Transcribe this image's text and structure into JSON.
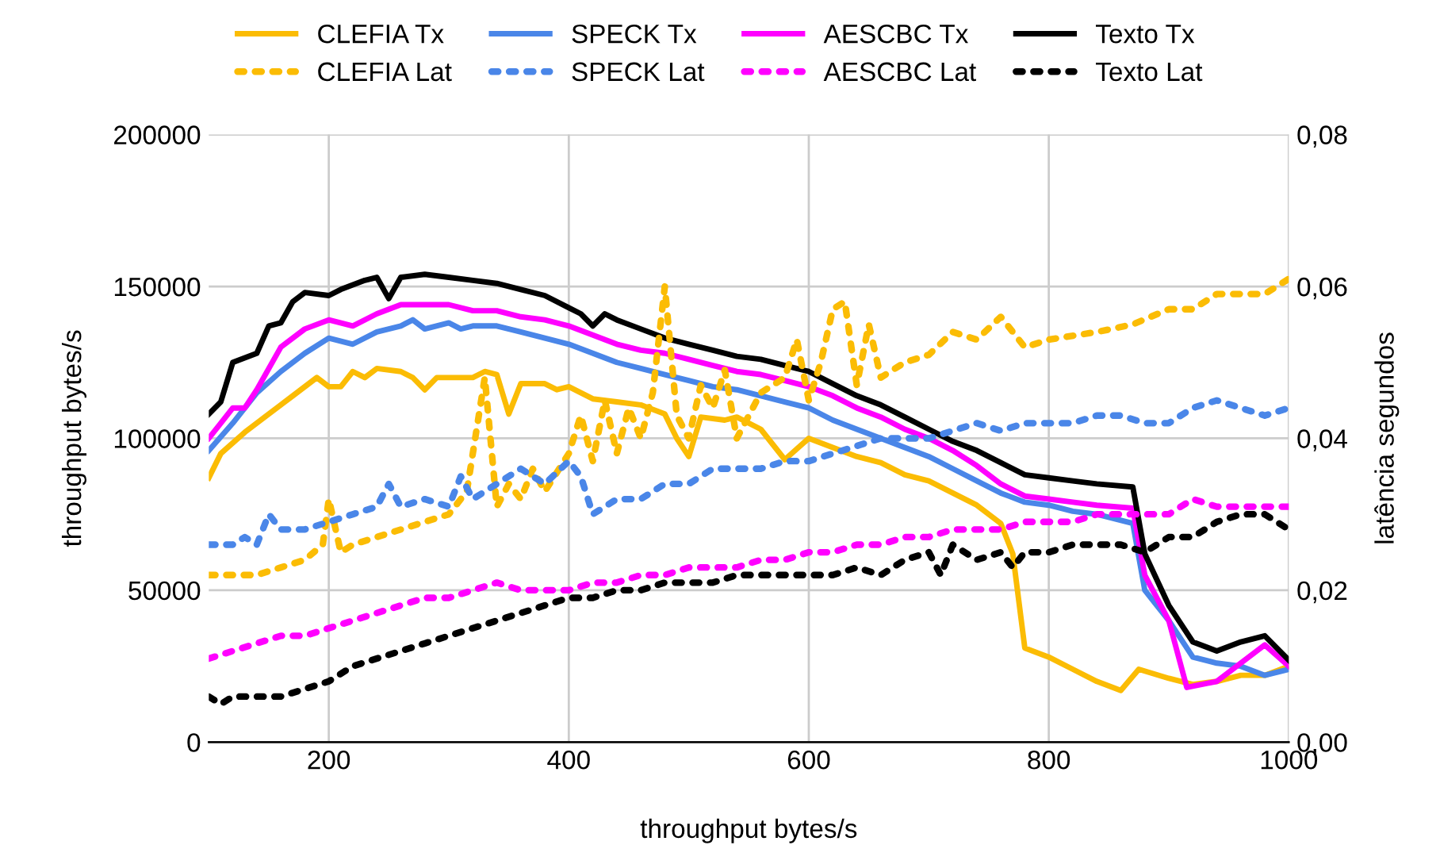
{
  "chart_data": {
    "type": "line",
    "xlabel": "throughput bytes/s",
    "ylabel": "throughput bytes/s",
    "y2label": "latência segundos",
    "xlim": [
      100,
      1000
    ],
    "xticks": [
      200,
      400,
      600,
      800,
      1000
    ],
    "ylim": [
      0,
      200000
    ],
    "yticks": [
      0,
      50000,
      100000,
      150000,
      200000
    ],
    "y2lim": [
      0,
      0.08
    ],
    "y2ticks": [
      {
        "value": 0,
        "label": "0,00"
      },
      {
        "value": 0.02,
        "label": "0,02"
      },
      {
        "value": 0.04,
        "label": "0,04"
      },
      {
        "value": 0.06,
        "label": "0,06"
      },
      {
        "value": 0.08,
        "label": "0,08"
      }
    ],
    "grid": true,
    "legend": "top",
    "marker": "none",
    "series": [
      {
        "name": "CLEFIA Tx",
        "color": "#fbbc04",
        "line_style": "solid",
        "x": [
          100,
          110,
          130,
          150,
          170,
          190,
          200,
          210,
          220,
          230,
          240,
          260,
          270,
          280,
          290,
          300,
          320,
          330,
          340,
          350,
          360,
          380,
          390,
          400,
          420,
          440,
          460,
          480,
          490,
          500,
          510,
          530,
          540,
          560,
          580,
          600,
          620,
          640,
          660,
          680,
          700,
          720,
          740,
          760,
          770,
          780,
          800,
          820,
          840,
          860,
          875,
          900,
          920,
          940,
          960,
          980,
          1000
        ],
        "values": [
          87000,
          95000,
          102000,
          108000,
          114000,
          120000,
          117000,
          117000,
          122000,
          120000,
          123000,
          122000,
          120000,
          116000,
          120000,
          120000,
          120000,
          122000,
          121000,
          108000,
          118000,
          118000,
          116000,
          117000,
          113000,
          112000,
          111000,
          108000,
          100000,
          94000,
          107000,
          106000,
          107000,
          103000,
          93000,
          100000,
          97000,
          94000,
          92000,
          88000,
          86000,
          82000,
          78000,
          72000,
          62000,
          31000,
          28000,
          24000,
          20000,
          17000,
          24000,
          21000,
          19000,
          20000,
          22000,
          22000,
          25000
        ]
      },
      {
        "name": "CLEFIA Lat",
        "color": "#fbbc04",
        "line_style": "dotted",
        "axis": "y2",
        "x": [
          100,
          120,
          140,
          160,
          180,
          195,
          200,
          210,
          220,
          240,
          260,
          280,
          300,
          315,
          330,
          340,
          350,
          360,
          370,
          380,
          400,
          410,
          420,
          430,
          440,
          450,
          460,
          470,
          480,
          490,
          500,
          510,
          520,
          530,
          540,
          560,
          580,
          590,
          600,
          610,
          620,
          630,
          640,
          650,
          660,
          680,
          700,
          720,
          740,
          760,
          780,
          800,
          840,
          870,
          900,
          920,
          940,
          980,
          1000
        ],
        "values": [
          0.022,
          0.022,
          0.022,
          0.023,
          0.024,
          0.026,
          0.032,
          0.025,
          0.026,
          0.027,
          0.028,
          0.029,
          0.03,
          0.033,
          0.048,
          0.031,
          0.034,
          0.032,
          0.036,
          0.033,
          0.038,
          0.043,
          0.037,
          0.045,
          0.038,
          0.044,
          0.04,
          0.046,
          0.06,
          0.043,
          0.04,
          0.047,
          0.044,
          0.049,
          0.04,
          0.046,
          0.048,
          0.053,
          0.045,
          0.05,
          0.057,
          0.058,
          0.047,
          0.055,
          0.048,
          0.05,
          0.051,
          0.054,
          0.053,
          0.056,
          0.052,
          0.053,
          0.054,
          0.055,
          0.057,
          0.057,
          0.059,
          0.059,
          0.061
        ]
      },
      {
        "name": "SPECK Tx",
        "color": "#4a86e8",
        "line_style": "solid",
        "x": [
          100,
          120,
          140,
          160,
          180,
          200,
          220,
          240,
          260,
          270,
          280,
          300,
          310,
          320,
          340,
          360,
          380,
          400,
          420,
          440,
          460,
          480,
          500,
          520,
          540,
          560,
          580,
          600,
          620,
          640,
          660,
          680,
          700,
          720,
          740,
          760,
          780,
          800,
          820,
          840,
          870,
          880,
          900,
          920,
          940,
          960,
          980,
          1000
        ],
        "values": [
          96000,
          105000,
          115000,
          122000,
          128000,
          133000,
          131000,
          135000,
          137000,
          139000,
          136000,
          138000,
          136000,
          137000,
          137000,
          135000,
          133000,
          131000,
          128000,
          125000,
          123000,
          121000,
          119000,
          117000,
          116000,
          114000,
          112000,
          110000,
          106000,
          103000,
          100000,
          97000,
          94000,
          90000,
          86000,
          82000,
          79000,
          78000,
          76000,
          75000,
          72000,
          50000,
          40000,
          28000,
          26000,
          25000,
          22000,
          24000
        ]
      },
      {
        "name": "SPECK Lat",
        "color": "#4a86e8",
        "line_style": "dotted",
        "axis": "y2",
        "x": [
          100,
          120,
          130,
          140,
          150,
          160,
          180,
          200,
          220,
          240,
          250,
          260,
          280,
          300,
          310,
          320,
          340,
          360,
          380,
          400,
          410,
          420,
          440,
          460,
          480,
          500,
          520,
          540,
          560,
          580,
          600,
          620,
          640,
          660,
          680,
          700,
          720,
          740,
          760,
          780,
          800,
          820,
          840,
          860,
          880,
          900,
          920,
          940,
          960,
          980,
          1000
        ],
        "values": [
          0.026,
          0.026,
          0.027,
          0.026,
          0.03,
          0.028,
          0.028,
          0.029,
          0.03,
          0.031,
          0.034,
          0.031,
          0.032,
          0.031,
          0.035,
          0.032,
          0.034,
          0.036,
          0.034,
          0.037,
          0.035,
          0.03,
          0.032,
          0.032,
          0.034,
          0.034,
          0.036,
          0.036,
          0.036,
          0.037,
          0.037,
          0.038,
          0.039,
          0.04,
          0.04,
          0.04,
          0.041,
          0.042,
          0.041,
          0.042,
          0.042,
          0.042,
          0.043,
          0.043,
          0.042,
          0.042,
          0.044,
          0.045,
          0.044,
          0.043,
          0.044
        ]
      },
      {
        "name": "AESCBC Tx",
        "color": "#ff00ff",
        "line_style": "solid",
        "x": [
          100,
          110,
          120,
          130,
          140,
          160,
          180,
          200,
          220,
          240,
          260,
          280,
          300,
          320,
          340,
          360,
          380,
          400,
          420,
          440,
          460,
          480,
          500,
          520,
          540,
          560,
          580,
          600,
          620,
          640,
          660,
          680,
          700,
          720,
          740,
          760,
          780,
          800,
          820,
          840,
          870,
          880,
          900,
          915,
          940,
          960,
          980,
          1000
        ],
        "values": [
          100000,
          105000,
          110000,
          110000,
          116000,
          130000,
          136000,
          139000,
          137000,
          141000,
          144000,
          144000,
          144000,
          142000,
          142000,
          140000,
          139000,
          137000,
          134000,
          131000,
          129000,
          128000,
          126000,
          124000,
          122000,
          121000,
          119000,
          117000,
          114000,
          110000,
          107000,
          103000,
          100000,
          96000,
          91000,
          85000,
          81000,
          80000,
          79000,
          78000,
          77000,
          55000,
          40000,
          18000,
          20000,
          26000,
          32000,
          25000
        ]
      },
      {
        "name": "AESCBC Lat",
        "color": "#ff00ff",
        "line_style": "dotted",
        "axis": "y2",
        "x": [
          100,
          120,
          140,
          160,
          180,
          200,
          220,
          240,
          260,
          280,
          300,
          320,
          340,
          360,
          380,
          400,
          420,
          440,
          460,
          480,
          500,
          520,
          540,
          560,
          580,
          600,
          620,
          640,
          660,
          680,
          700,
          720,
          740,
          760,
          780,
          800,
          820,
          840,
          860,
          880,
          900,
          920,
          940,
          960,
          980,
          1000
        ],
        "values": [
          0.011,
          0.012,
          0.013,
          0.014,
          0.014,
          0.015,
          0.016,
          0.017,
          0.018,
          0.019,
          0.019,
          0.02,
          0.021,
          0.02,
          0.02,
          0.02,
          0.021,
          0.021,
          0.022,
          0.022,
          0.023,
          0.023,
          0.023,
          0.024,
          0.024,
          0.025,
          0.025,
          0.026,
          0.026,
          0.027,
          0.027,
          0.028,
          0.028,
          0.028,
          0.029,
          0.029,
          0.029,
          0.03,
          0.03,
          0.03,
          0.03,
          0.032,
          0.031,
          0.031,
          0.031,
          0.031
        ]
      },
      {
        "name": "Texto Tx",
        "color": "#000000",
        "line_style": "solid",
        "x": [
          100,
          110,
          120,
          140,
          150,
          160,
          170,
          180,
          200,
          210,
          230,
          240,
          250,
          260,
          280,
          300,
          320,
          340,
          360,
          380,
          400,
          410,
          420,
          430,
          440,
          460,
          480,
          500,
          520,
          540,
          560,
          580,
          600,
          620,
          640,
          660,
          680,
          700,
          720,
          740,
          760,
          780,
          800,
          820,
          840,
          870,
          880,
          900,
          920,
          940,
          960,
          980,
          1000
        ],
        "values": [
          108000,
          112000,
          125000,
          128000,
          137000,
          138000,
          145000,
          148000,
          147000,
          149000,
          152000,
          153000,
          146000,
          153000,
          154000,
          153000,
          152000,
          151000,
          149000,
          147000,
          143000,
          141000,
          137000,
          141000,
          139000,
          136000,
          133000,
          131000,
          129000,
          127000,
          126000,
          124000,
          122000,
          118000,
          114000,
          111000,
          107000,
          103000,
          99000,
          96000,
          92000,
          88000,
          87000,
          86000,
          85000,
          84000,
          62000,
          45000,
          33000,
          30000,
          33000,
          35000,
          27000
        ]
      },
      {
        "name": "Texto Lat",
        "color": "#000000",
        "line_style": "dotted",
        "axis": "y2",
        "x": [
          100,
          110,
          120,
          140,
          160,
          180,
          200,
          220,
          240,
          260,
          280,
          300,
          320,
          340,
          360,
          380,
          400,
          420,
          440,
          460,
          480,
          500,
          520,
          540,
          560,
          580,
          600,
          620,
          640,
          660,
          680,
          700,
          710,
          720,
          740,
          760,
          770,
          780,
          800,
          820,
          840,
          860,
          880,
          900,
          920,
          940,
          960,
          980,
          1000
        ],
        "values": [
          0.006,
          0.005,
          0.006,
          0.006,
          0.006,
          0.007,
          0.008,
          0.01,
          0.011,
          0.012,
          0.013,
          0.014,
          0.015,
          0.016,
          0.017,
          0.018,
          0.019,
          0.019,
          0.02,
          0.02,
          0.021,
          0.021,
          0.021,
          0.022,
          0.022,
          0.022,
          0.022,
          0.022,
          0.023,
          0.022,
          0.024,
          0.025,
          0.022,
          0.026,
          0.024,
          0.025,
          0.023,
          0.025,
          0.025,
          0.026,
          0.026,
          0.026,
          0.025,
          0.027,
          0.027,
          0.029,
          0.03,
          0.03,
          0.028
        ]
      }
    ]
  }
}
